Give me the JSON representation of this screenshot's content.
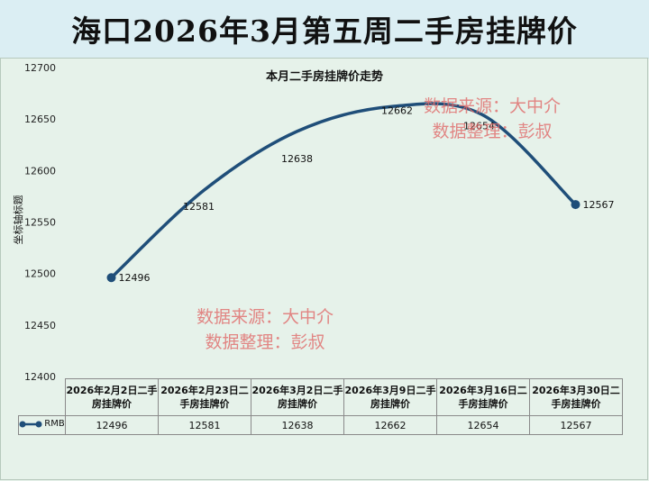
{
  "page_title": "海口2026年3月第五周二手房挂牌价",
  "watermark_lines": [
    "数据来源：大中介",
    "数据整理：彭叔"
  ],
  "chart_data": {
    "type": "line",
    "title": "本月二手房挂牌价走势",
    "ylabel": "坐标轴标题",
    "categories": [
      "2026年2月2日二手房挂牌价",
      "2026年2月23日二手房挂牌价",
      "2026年3月2日二手房挂牌价",
      "2026年3月9日二手房挂牌价",
      "2026年3月16日二手房挂牌价",
      "2026年3月30日二手房挂牌价"
    ],
    "series": [
      {
        "name": "RMB",
        "values": [
          12496,
          12581,
          12638,
          12662,
          12654,
          12567
        ]
      }
    ],
    "ylim": [
      12400,
      12700
    ],
    "yticks": [
      12400,
      12450,
      12500,
      12550,
      12600,
      12650,
      12700
    ],
    "line_color": "#1f4e79",
    "data_labels": true,
    "smooth": true,
    "legend": "data-table"
  }
}
